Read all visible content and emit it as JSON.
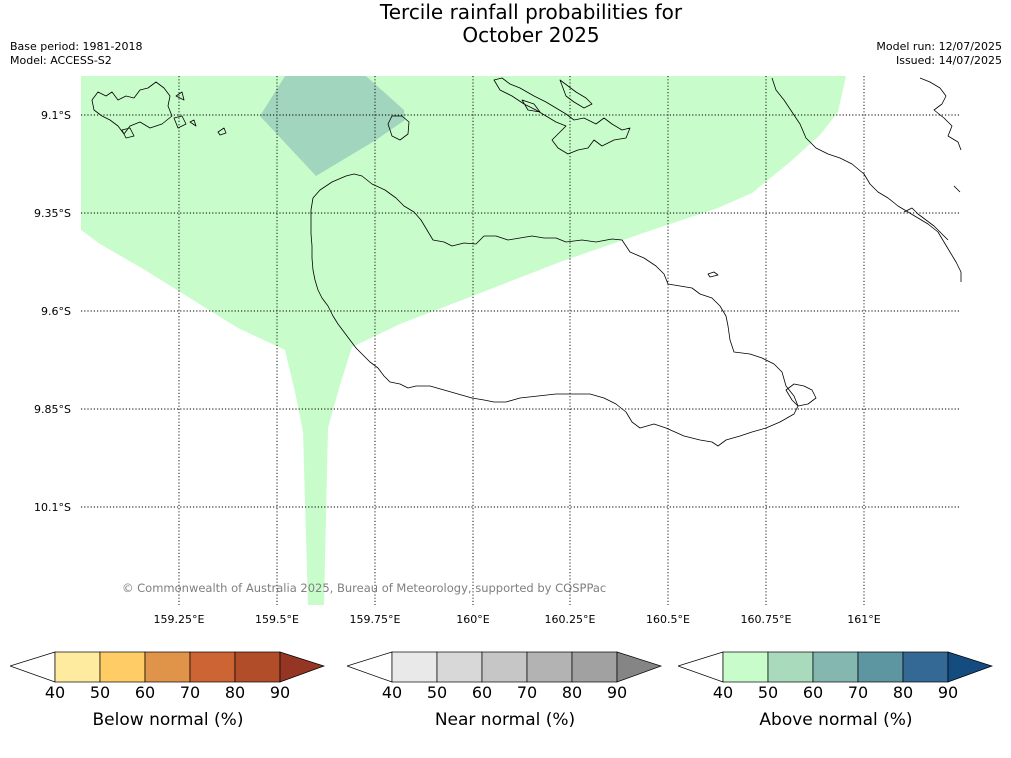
{
  "header": {
    "title_line1": "Tercile rainfall probabilities for",
    "title_line2": "October 2025",
    "base_period": "Base period: 1981-2018",
    "model": "Model: ACCESS-S2",
    "model_run": "Model run: 12/07/2025",
    "issued": "Issued: 14/07/2025"
  },
  "map": {
    "latitude_labels": [
      "9.1°S",
      "9.35°S",
      "9.6°S",
      "9.85°S",
      "10.1°S"
    ],
    "longitude_labels": [
      "159.25°E",
      "159.5°E",
      "159.75°E",
      "160°E",
      "160.25°E",
      "160.5°E",
      "160.75°E",
      "161°E"
    ],
    "copyright": "© Commonwealth of Australia 2025, Bureau of Meteorology, supported by COSPPac",
    "shading": [
      {
        "category": "Above normal",
        "probability_range": "40-50",
        "color": "#c9fccb"
      },
      {
        "category": "Above normal",
        "probability_range": "50-60",
        "color": "#a2d5bd"
      }
    ]
  },
  "legend": [
    {
      "label": "Below normal (%)",
      "ticks": [
        "40",
        "50",
        "60",
        "70",
        "80",
        "90"
      ],
      "colors": [
        "#ffffff",
        "#ffeb9f",
        "#ffcc66",
        "#e0944a",
        "#cd6433",
        "#b24d2a",
        "#943623"
      ]
    },
    {
      "label": "Near normal (%)",
      "ticks": [
        "40",
        "50",
        "60",
        "70",
        "80",
        "90"
      ],
      "colors": [
        "#ffffff",
        "#e9e9e9",
        "#d8d8d8",
        "#c6c6c6",
        "#b3b3b3",
        "#a1a1a1",
        "#858585"
      ]
    },
    {
      "label": "Above normal (%)",
      "ticks": [
        "40",
        "50",
        "60",
        "70",
        "80",
        "90"
      ],
      "colors": [
        "#ffffff",
        "#c9fccb",
        "#a8dabb",
        "#83b7b0",
        "#5d95a1",
        "#346895",
        "#154c80"
      ]
    }
  ]
}
